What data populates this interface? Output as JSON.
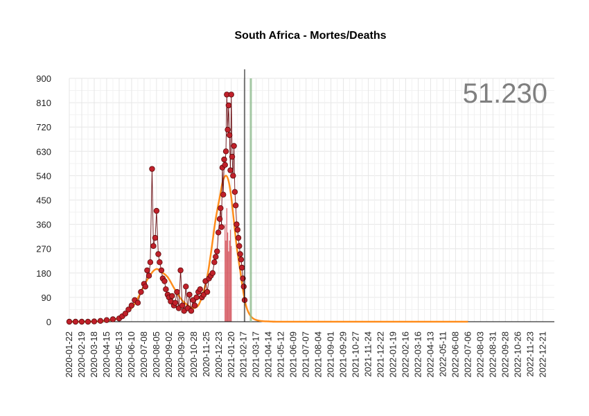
{
  "chart_data": {
    "type": "line",
    "title": "South Africa - Mortes/Deaths",
    "annotation": "51.230",
    "ylim": [
      0,
      900
    ],
    "y_ticks": [
      "0",
      "90",
      "180",
      "270",
      "360",
      "450",
      "540",
      "630",
      "720",
      "810",
      "900"
    ],
    "x_range": [
      "2020-01-22",
      "2023-01-16"
    ],
    "x_ticks": [
      "2020-01-22",
      "2020-02-19",
      "2020-03-18",
      "2020-04-15",
      "2020-05-13",
      "2020-06-10",
      "2020-07-08",
      "2020-08-05",
      "2020-09-02",
      "2020-09-30",
      "2020-10-28",
      "2020-11-25",
      "2020-12-23",
      "2021-01-20",
      "2021-02-17",
      "2021-03-17",
      "2021-04-14",
      "2021-05-12",
      "2021-06-09",
      "2021-07-07",
      "2021-08-04",
      "2021-09-01",
      "2021-09-29",
      "2021-10-27",
      "2021-11-24",
      "2021-12-22",
      "2022-01-19",
      "2022-02-16",
      "2022-03-16",
      "2022-04-13",
      "2022-05-11",
      "2022-06-08",
      "2022-07-06",
      "2022-08-03",
      "2022-08-31",
      "2022-09-28",
      "2022-10-26",
      "2022-11-23",
      "2022-12-21"
    ],
    "current_date": "2021-02-19",
    "marker_date": "2021-03-05",
    "grid": true,
    "colors": {
      "points": "#c0202a",
      "point_edge": "#5a0a0a",
      "bars": "#d24b55",
      "trend": "#ff8c1a",
      "current_line": "#000000",
      "marker_line": "#8fbc8f",
      "grid": "#e6e6e6"
    },
    "series": [
      {
        "type": "points",
        "x": [
          "2020-01-22",
          "2020-02-05",
          "2020-02-19",
          "2020-03-04",
          "2020-03-18",
          "2020-04-01",
          "2020-04-15",
          "2020-04-29",
          "2020-05-13",
          "2020-05-20",
          "2020-05-27",
          "2020-06-03",
          "2020-06-10",
          "2020-06-17",
          "2020-06-24",
          "2020-07-01",
          "2020-07-08",
          "2020-07-11",
          "2020-07-15",
          "2020-07-19",
          "2020-07-22",
          "2020-07-26",
          "2020-07-29",
          "2020-08-02",
          "2020-08-05",
          "2020-08-09",
          "2020-08-12",
          "2020-08-16",
          "2020-08-19",
          "2020-08-23",
          "2020-08-26",
          "2020-08-30",
          "2020-09-02",
          "2020-09-06",
          "2020-09-09",
          "2020-09-13",
          "2020-09-16",
          "2020-09-20",
          "2020-09-24",
          "2020-09-28",
          "2020-10-02",
          "2020-10-06",
          "2020-10-10",
          "2020-10-14",
          "2020-10-18",
          "2020-10-22",
          "2020-10-26",
          "2020-10-30",
          "2020-11-03",
          "2020-11-07",
          "2020-11-11",
          "2020-11-15",
          "2020-11-19",
          "2020-11-23",
          "2020-11-27",
          "2020-12-01",
          "2020-12-05",
          "2020-12-09",
          "2020-12-13",
          "2020-12-16",
          "2020-12-19",
          "2020-12-22",
          "2020-12-25",
          "2020-12-27",
          "2020-12-29",
          "2020-12-31",
          "2021-01-02",
          "2021-01-04",
          "2021-01-06",
          "2021-01-08",
          "2021-01-10",
          "2021-01-12",
          "2021-01-14",
          "2021-01-16",
          "2021-01-18",
          "2021-01-20",
          "2021-01-22",
          "2021-01-24",
          "2021-01-26",
          "2021-01-28",
          "2021-01-30",
          "2021-02-01",
          "2021-02-03",
          "2021-02-05",
          "2021-02-07",
          "2021-02-09",
          "2021-02-11",
          "2021-02-13",
          "2021-02-15",
          "2021-02-17",
          "2021-02-19"
        ],
        "y": [
          0,
          0,
          0,
          0,
          1,
          3,
          6,
          9,
          12,
          20,
          30,
          45,
          60,
          80,
          70,
          110,
          140,
          130,
          190,
          170,
          220,
          565,
          280,
          310,
          410,
          250,
          220,
          190,
          160,
          150,
          120,
          100,
          90,
          75,
          95,
          60,
          70,
          110,
          50,
          190,
          60,
          40,
          130,
          50,
          100,
          40,
          80,
          60,
          90,
          110,
          120,
          90,
          100,
          150,
          110,
          160,
          170,
          180,
          220,
          240,
          260,
          330,
          380,
          420,
          350,
          570,
          470,
          600,
          580,
          630,
          840,
          710,
          800,
          690,
          560,
          840,
          610,
          540,
          650,
          480,
          430,
          360,
          340,
          310,
          280,
          250,
          230,
          200,
          160,
          130,
          80
        ]
      },
      {
        "type": "bars",
        "x": [
          "2021-01-06",
          "2021-01-08",
          "2021-01-10",
          "2021-01-12",
          "2021-01-14",
          "2021-01-16",
          "2021-01-18",
          "2021-01-20"
        ],
        "y": [
          360,
          300,
          420,
          330,
          260,
          300,
          340,
          280
        ]
      },
      {
        "type": "trend",
        "x": [
          "2020-01-22",
          "2020-03-01",
          "2020-04-01",
          "2020-05-01",
          "2020-05-20",
          "2020-06-10",
          "2020-06-25",
          "2020-07-10",
          "2020-07-25",
          "2020-08-05",
          "2020-08-15",
          "2020-08-30",
          "2020-09-15",
          "2020-10-01",
          "2020-10-15",
          "2020-10-28",
          "2020-11-10",
          "2020-11-25",
          "2020-12-05",
          "2020-12-15",
          "2020-12-25",
          "2021-01-01",
          "2021-01-08",
          "2021-01-14",
          "2021-01-20",
          "2021-01-26",
          "2021-02-01",
          "2021-02-08",
          "2021-02-15",
          "2021-02-22",
          "2021-03-01",
          "2021-03-10",
          "2021-03-20",
          "2021-04-01",
          "2021-04-14",
          "2021-05-01",
          "2021-06-01",
          "2022-07-06"
        ],
        "y": [
          0,
          0,
          2,
          8,
          20,
          50,
          90,
          140,
          180,
          195,
          185,
          165,
          120,
          80,
          60,
          50,
          70,
          150,
          250,
          370,
          460,
          520,
          540,
          520,
          460,
          370,
          280,
          200,
          120,
          60,
          30,
          12,
          5,
          2,
          1,
          0,
          0,
          0
        ]
      }
    ]
  }
}
